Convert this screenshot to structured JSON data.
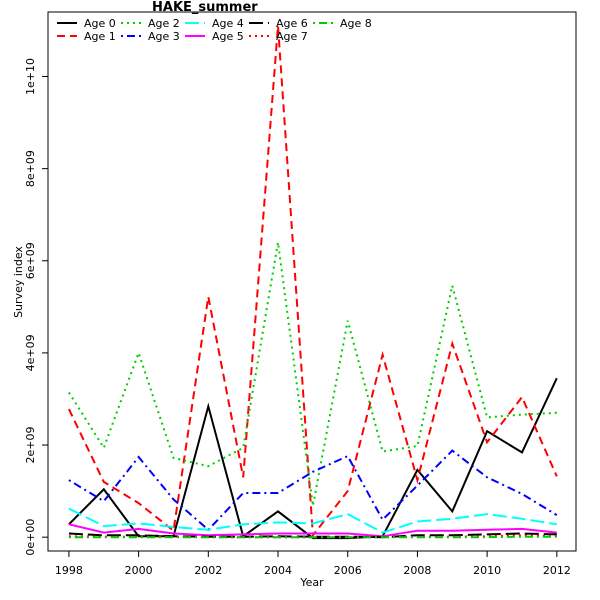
{
  "chart_data": {
    "type": "line",
    "title": "HAKE_summer",
    "xlabel": "Year",
    "ylabel": "Survey index",
    "x": [
      1998,
      1999,
      2000,
      2001,
      2002,
      2003,
      2004,
      2005,
      2006,
      2007,
      2008,
      2009,
      2010,
      2011,
      2012
    ],
    "xlim": [
      1997.4,
      2012.55
    ],
    "ylim": [
      -300000000,
      11400000000
    ],
    "xticks": [
      1998,
      2000,
      2002,
      2004,
      2006,
      2008,
      2010,
      2012
    ],
    "xtick_labels": [
      "1998",
      "2000",
      "2002",
      "2004",
      "2006",
      "2008",
      "2010",
      "2012"
    ],
    "yticks": [
      0,
      2000000000,
      4000000000,
      6000000000,
      8000000000,
      10000000000
    ],
    "ytick_labels": [
      "0e+00",
      "2e+09",
      "4e+09",
      "6e+09",
      "8e+09",
      "1e+10"
    ],
    "legend_position": "top-left",
    "series": [
      {
        "name": "Age 0",
        "color": "#000000",
        "dash": "solid",
        "values": [
          280000000,
          1040000000,
          20000000,
          20000000,
          2840000000,
          20000000,
          560000000,
          -20000000,
          -20000000,
          20000000,
          1460000000,
          560000000,
          2300000000,
          1840000000,
          3450000000
        ]
      },
      {
        "name": "Age 1",
        "color": "#ff0000",
        "dash": "dashed",
        "values": [
          2780000000,
          1200000000,
          740000000,
          140000000,
          5220000000,
          1300000000,
          11100000000,
          40000000,
          1000000000,
          3960000000,
          1240000000,
          4200000000,
          2060000000,
          3040000000,
          1320000000
        ]
      },
      {
        "name": "Age 2",
        "color": "#00cd00",
        "dash": "dotted",
        "values": [
          3140000000,
          1940000000,
          4000000000,
          1720000000,
          1540000000,
          1940000000,
          6400000000,
          680000000,
          4700000000,
          1860000000,
          1980000000,
          5460000000,
          2600000000,
          2660000000,
          2700000000
        ]
      },
      {
        "name": "Age 3",
        "color": "#0000ff",
        "dash": "dotdash",
        "values": [
          1240000000,
          780000000,
          1740000000,
          820000000,
          160000000,
          960000000,
          960000000,
          1420000000,
          1760000000,
          380000000,
          1120000000,
          1880000000,
          1300000000,
          940000000,
          480000000
        ]
      },
      {
        "name": "Age 4",
        "color": "#00ffff",
        "dash": "longdash",
        "values": [
          620000000,
          240000000,
          300000000,
          220000000,
          160000000,
          280000000,
          320000000,
          300000000,
          500000000,
          100000000,
          340000000,
          400000000,
          500000000,
          400000000,
          280000000
        ]
      },
      {
        "name": "Age 5",
        "color": "#ff00ff",
        "dash": "solid",
        "values": [
          280000000,
          100000000,
          180000000,
          80000000,
          40000000,
          60000000,
          80000000,
          80000000,
          80000000,
          20000000,
          140000000,
          140000000,
          160000000,
          180000000,
          100000000
        ]
      },
      {
        "name": "Age 6",
        "color": "#000000",
        "dash": "longdash",
        "values": [
          80000000,
          40000000,
          40000000,
          20000000,
          10000000,
          10000000,
          20000000,
          10000000,
          10000000,
          0,
          40000000,
          40000000,
          60000000,
          80000000,
          60000000
        ]
      },
      {
        "name": "Age 7",
        "color": "#ff0000",
        "dash": "dotted",
        "values": [
          20000000,
          10000000,
          10000000,
          10000000,
          0,
          0,
          0,
          0,
          0,
          0,
          10000000,
          10000000,
          20000000,
          40000000,
          20000000
        ]
      },
      {
        "name": "Age 8",
        "color": "#00cd00",
        "dash": "dotdash",
        "values": [
          0,
          0,
          0,
          0,
          0,
          0,
          0,
          0,
          0,
          0,
          0,
          0,
          0,
          10000000,
          10000000
        ]
      }
    ]
  }
}
